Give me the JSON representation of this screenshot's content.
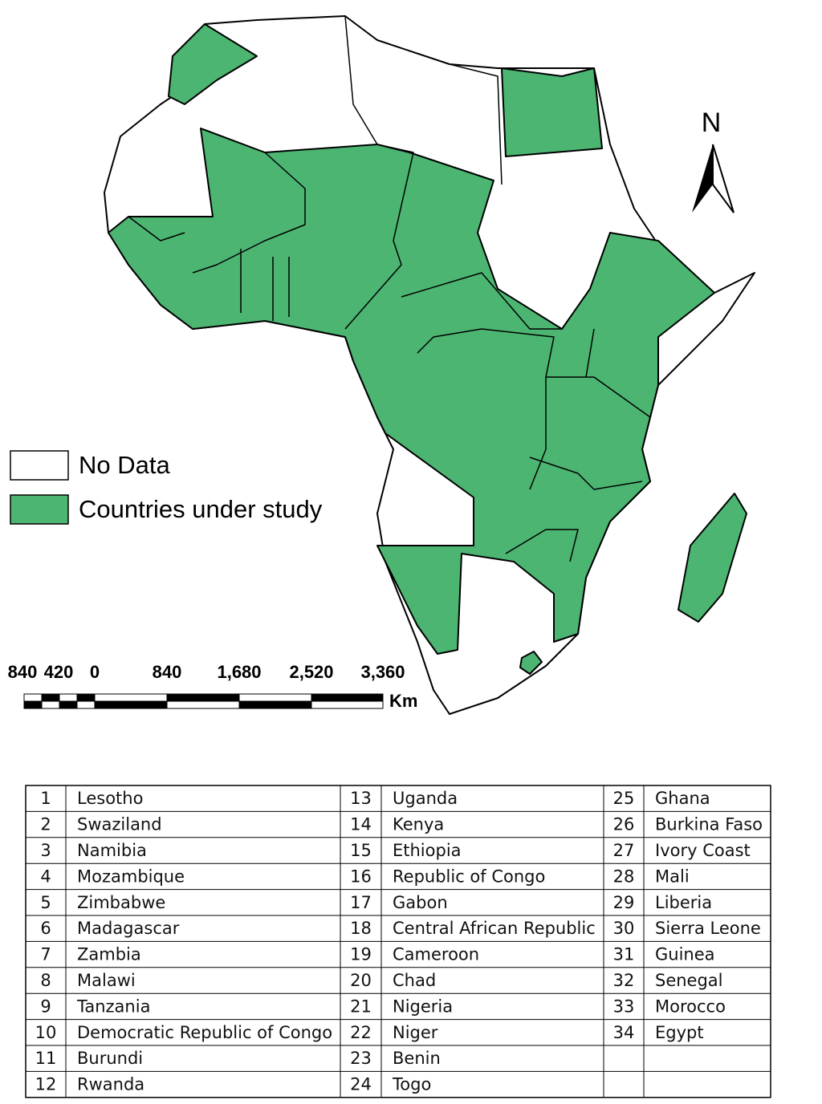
{
  "map": {
    "north": "N",
    "legend": [
      {
        "label": "No Data",
        "color": "#ffffff"
      },
      {
        "label": "Countries under study",
        "color": "#4cb572"
      }
    ],
    "scale_bar": {
      "labels": [
        "840",
        "420",
        "0",
        "840",
        "1,680",
        "2,520",
        "3,360"
      ],
      "unit": "Km"
    }
  },
  "table": {
    "groups": [
      [
        [
          1,
          "Lesotho"
        ],
        [
          2,
          "Swaziland"
        ],
        [
          3,
          "Namibia"
        ],
        [
          4,
          "Mozambique"
        ],
        [
          5,
          "Zimbabwe"
        ],
        [
          6,
          "Madagascar"
        ],
        [
          7,
          "Zambia"
        ],
        [
          8,
          "Malawi"
        ],
        [
          9,
          "Tanzania"
        ],
        [
          10,
          "Democratic Republic of Congo"
        ],
        [
          11,
          "Burundi"
        ],
        [
          12,
          "Rwanda"
        ]
      ],
      [
        [
          13,
          "Uganda"
        ],
        [
          14,
          "Kenya"
        ],
        [
          15,
          "Ethiopia"
        ],
        [
          16,
          "Republic of Congo"
        ],
        [
          17,
          "Gabon"
        ],
        [
          18,
          "Central African Republic"
        ],
        [
          19,
          "Cameroon"
        ],
        [
          20,
          "Chad"
        ],
        [
          21,
          "Nigeria"
        ],
        [
          22,
          "Niger"
        ],
        [
          23,
          "Benin"
        ],
        [
          24,
          "Togo"
        ]
      ],
      [
        [
          25,
          "Ghana"
        ],
        [
          26,
          "Burkina Faso"
        ],
        [
          27,
          "Ivory Coast"
        ],
        [
          28,
          "Mali"
        ],
        [
          29,
          "Liberia"
        ],
        [
          30,
          "Sierra Leone"
        ],
        [
          31,
          "Guinea"
        ],
        [
          32,
          "Senegal"
        ],
        [
          33,
          "Morocco"
        ],
        [
          34,
          "Egypt"
        ]
      ]
    ]
  }
}
